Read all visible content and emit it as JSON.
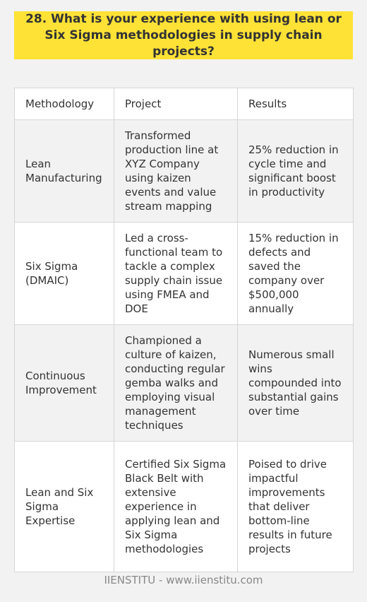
{
  "title": "28. What is your experience with using lean or Six Sigma methodologies in supply chain projects?",
  "table": {
    "headers": [
      "Methodology",
      "Project",
      "Results"
    ],
    "rows": [
      {
        "methodology": "Lean Manufacturing",
        "project": "Transformed production line at XYZ Company using kaizen events and value stream mapping",
        "results": "25% reduction in cycle time and significant boost in productivity"
      },
      {
        "methodology": "Six Sigma (DMAIC)",
        "project": "Led a cross-functional team to tackle a complex supply chain issue using FMEA and DOE",
        "results": "15% reduction in defects and saved the company over $500,000 annually"
      },
      {
        "methodology": "Continuous Improvement",
        "project": "Championed a culture of kaizen, conducting regular gemba walks and employing visual management techniques",
        "results": "Numerous small wins compounded into substantial gains over time"
      },
      {
        "methodology": "Lean and Six Sigma Expertise",
        "project": "Certified Six Sigma Black Belt with extensive experience in applying lean and Six Sigma methodologies",
        "results": "Poised to drive impactful improvements that deliver bottom-line results in future projects"
      }
    ]
  },
  "footer": "IIENSTITU - www.iienstitu.com",
  "colors": {
    "title_background": "#ffe236",
    "page_background": "#f2f2f2",
    "text": "#333333",
    "footer_text": "#888888"
  }
}
